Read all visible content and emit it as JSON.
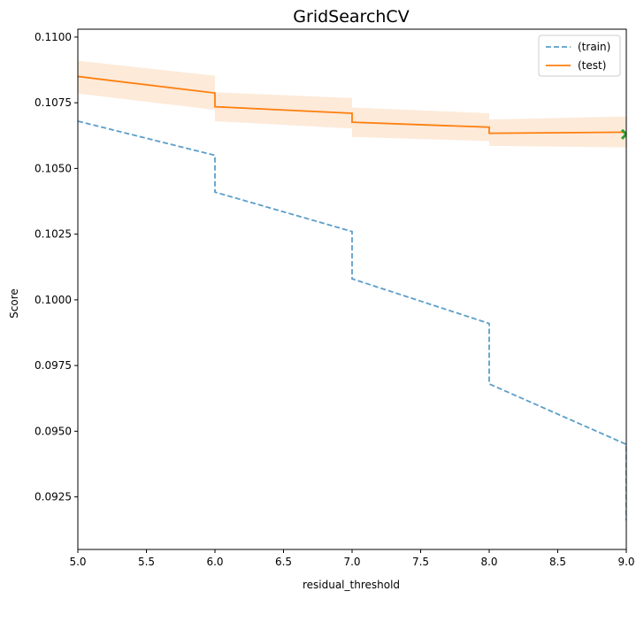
{
  "chart_data": {
    "type": "line",
    "title": "GridSearchCV",
    "xlabel": "residual_threshold",
    "ylabel": "Score",
    "xlim": [
      5.0,
      9.0
    ],
    "ylim": [
      0.0905,
      0.1103
    ],
    "xticks": [
      "5.0",
      "5.5",
      "6.0",
      "6.5",
      "7.0",
      "7.5",
      "8.0",
      "8.5",
      "9.0"
    ],
    "yticks": [
      "0.0925",
      "0.0950",
      "0.0975",
      "0.1000",
      "0.1025",
      "0.1050",
      "0.1075",
      "0.1100"
    ],
    "legend_position": "top-right",
    "series": [
      {
        "name": "(train)",
        "style": "dashed",
        "color": "#5b9ec9",
        "x": [
          5.0,
          6.0,
          6.0,
          7.0,
          7.0,
          8.0,
          8.0,
          9.0,
          9.0
        ],
        "y": [
          0.1068,
          0.1055,
          0.1041,
          0.1026,
          0.1008,
          0.0991,
          0.0968,
          0.0945,
          0.0916
        ]
      },
      {
        "name": "(test)",
        "style": "solid",
        "color": "#ff7f0e",
        "x": [
          5.0,
          6.0,
          6.0,
          7.0,
          7.0,
          8.0,
          8.0,
          9.0
        ],
        "y": [
          0.1085,
          0.10787,
          0.10735,
          0.1071,
          0.10676,
          0.10657,
          0.10634,
          0.10638
        ],
        "band_upper": [
          0.1091,
          0.10853,
          0.1079,
          0.10768,
          0.10732,
          0.1071,
          0.10686,
          0.10698
        ],
        "band_lower": [
          0.10785,
          0.10723,
          0.1068,
          0.10652,
          0.1062,
          0.10604,
          0.10586,
          0.1058
        ],
        "band_color": "#fde5d0"
      }
    ],
    "best_marker": {
      "x": 9.0,
      "y": 0.1063,
      "symbol": "x",
      "color": "#2ca02c"
    }
  }
}
